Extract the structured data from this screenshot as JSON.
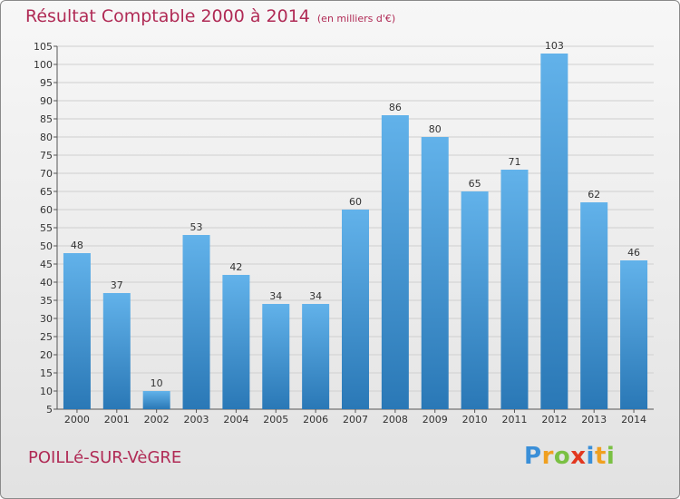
{
  "title": "Résultat Comptable 2000 à 2014",
  "unit": "(en milliers d'€)",
  "city": "POILLé-SUR-VèGRE",
  "logo": {
    "text": "Proxiti",
    "letters": [
      {
        "ch": "P",
        "color": "#3a8fd8"
      },
      {
        "ch": "r",
        "color": "#f0a020"
      },
      {
        "ch": "o",
        "color": "#7ac043"
      },
      {
        "ch": "x",
        "color": "#e2371f"
      },
      {
        "ch": "i",
        "color": "#3a8fd8"
      },
      {
        "ch": "t",
        "color": "#f0a020"
      },
      {
        "ch": "i",
        "color": "#7ac043"
      }
    ]
  },
  "colors": {
    "bar_light": "#62b2ea",
    "bar_dark": "#2a78b6",
    "title": "#b02a55"
  },
  "chart_data": {
    "type": "bar",
    "categories": [
      "2000",
      "2001",
      "2002",
      "2003",
      "2004",
      "2005",
      "2006",
      "2007",
      "2008",
      "2009",
      "2010",
      "2011",
      "2012",
      "2013",
      "2014"
    ],
    "values": [
      48,
      37,
      10,
      53,
      42,
      34,
      34,
      60,
      86,
      80,
      65,
      71,
      103,
      62,
      46
    ],
    "title": "Résultat Comptable 2000 à 2014",
    "subtitle": "(en milliers d'€)",
    "xlabel": "",
    "ylabel": "",
    "ylim": [
      5,
      105
    ],
    "yticks": [
      5,
      10,
      15,
      20,
      25,
      30,
      35,
      40,
      45,
      50,
      55,
      60,
      65,
      70,
      75,
      80,
      85,
      90,
      95,
      100,
      105
    ],
    "grid": true
  }
}
